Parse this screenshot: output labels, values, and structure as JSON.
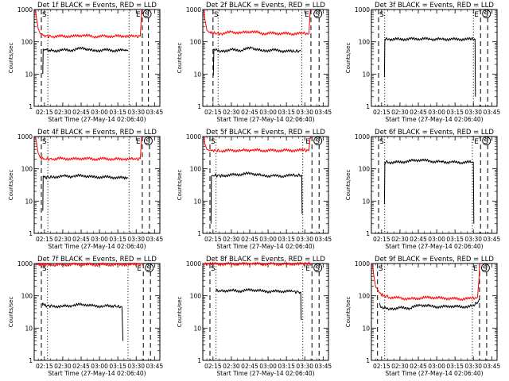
{
  "chart_data": {
    "type": "line",
    "yscale": "log",
    "ylabel": "Counts/sec",
    "xlabel": "Start Time (27-May-14 02:06:40)",
    "xlim": [
      7600,
      13760
    ],
    "ylim": [
      1,
      1000
    ],
    "xticks": [
      {
        "t": 8100,
        "label": "02:15"
      },
      {
        "t": 9000,
        "label": "02:30"
      },
      {
        "t": 9900,
        "label": "02:45"
      },
      {
        "t": 10800,
        "label": "03:00"
      },
      {
        "t": 11700,
        "label": "03:15"
      },
      {
        "t": 12600,
        "label": "03:30"
      },
      {
        "t": 13500,
        "label": "03:45"
      }
    ],
    "yticks": [
      {
        "v": 1,
        "label": "1"
      },
      {
        "v": 10,
        "label": "10"
      },
      {
        "v": 100,
        "label": "100"
      },
      {
        "v": 1000,
        "label": "1000"
      }
    ],
    "markers": [
      "S",
      "E",
      "S"
    ],
    "panels": [
      {
        "title": "Det 1f BLACK = Events, RED = LLD",
        "lines": {
          "dash1": 7950,
          "dot1": 8270,
          "dot2": 12250,
          "dashE": 12900,
          "dashS": 13200
        },
        "series": [
          {
            "color": "#ff0000",
            "x": [
              7650,
              7700,
              7800,
              7900,
              8100,
              8500,
              9000,
              9500,
              10000,
              10500,
              11000,
              11500,
              12000,
              12500,
              12800,
              12870
            ],
            "y": [
              1000,
              600,
              250,
              180,
              155,
              145,
              150,
              148,
              160,
              145,
              148,
              150,
              150,
              148,
              150,
              1000
            ]
          },
          {
            "color": "#000000",
            "x": [
              8020,
              8040,
              8090,
              8150,
              8500,
              9000,
              9500,
              10000,
              10500,
              11000,
              11500,
              12000,
              12200
            ],
            "y": [
              10,
              60,
              55,
              58,
              52,
              56,
              55,
              65,
              52,
              56,
              54,
              54,
              55
            ]
          }
        ]
      },
      {
        "title": "Det 2f BLACK = Events, RED = LLD",
        "lines": {
          "dash1": 8100,
          "dot1": 8350,
          "dot2": 12450,
          "dashE": 12900,
          "dashS": 13300
        },
        "series": [
          {
            "color": "#ff0000",
            "x": [
              7650,
              7700,
              7800,
              7900,
              8100,
              8500,
              9000,
              9500,
              10000,
              10500,
              11000,
              11500,
              12000,
              12500,
              12800,
              12870
            ],
            "y": [
              1000,
              500,
              230,
              200,
              185,
              180,
              200,
              190,
              210,
              180,
              185,
              180,
              178,
              180,
              180,
              1000
            ]
          },
          {
            "color": "#000000",
            "x": [
              8120,
              8140,
              8200,
              8500,
              9000,
              9500,
              10000,
              10500,
              11000,
              11500,
              12000,
              12400
            ],
            "y": [
              9,
              60,
              55,
              52,
              56,
              55,
              66,
              52,
              56,
              52,
              50,
              52
            ]
          }
        ]
      },
      {
        "title": "Det 3f BLACK = Events, RED = LLD",
        "lines": {
          "dash1": 7950,
          "dot1": 8250,
          "dot2": 12600,
          "dashE": 12950,
          "dashS": 13300
        },
        "series": [
          {
            "color": "#000000",
            "x": [
              8240,
              8260,
              8500,
              9000,
              9500,
              10000,
              10500,
              11000,
              11500,
              12000,
              12500,
              12680,
              12700
            ],
            "y": [
              8,
              120,
              120,
              120,
              122,
              125,
              120,
              122,
              120,
              120,
              120,
              120,
              2
            ]
          }
        ]
      },
      {
        "title": "Det 4f BLACK = Events, RED = LLD",
        "lines": {
          "dash1": 7950,
          "dot1": 8270,
          "dot2": 12250,
          "dashE": 12900,
          "dashS": 13250
        },
        "series": [
          {
            "color": "#ff0000",
            "x": [
              7650,
              7700,
              7800,
              7900,
              8100,
              8500,
              9000,
              9500,
              10000,
              10500,
              11000,
              11500,
              12000,
              12500,
              12800,
              12870
            ],
            "y": [
              1000,
              700,
              300,
              220,
              205,
              200,
              210,
              200,
              210,
              200,
              205,
              200,
              200,
              200,
              205,
              1000
            ]
          },
          {
            "color": "#000000",
            "x": [
              8020,
              8040,
              8100,
              8500,
              9000,
              9500,
              10000,
              10500,
              11000,
              11500,
              12000,
              12200
            ],
            "y": [
              5,
              60,
              55,
              55,
              60,
              58,
              62,
              55,
              56,
              54,
              52,
              52
            ]
          }
        ]
      },
      {
        "title": "Det 5f BLACK = Events, RED = LLD",
        "lines": {
          "dash1": 7950,
          "dot1": 8250,
          "dot2": 12500,
          "dashE": 12950,
          "dashS": 13300
        },
        "series": [
          {
            "color": "#ff0000",
            "x": [
              7650,
              7700,
              7800,
              7900,
              8100,
              8500,
              9000,
              9500,
              10000,
              10500,
              11000,
              11500,
              12000,
              12500,
              12800,
              12870
            ],
            "y": [
              1000,
              600,
              400,
              380,
              370,
              360,
              370,
              370,
              380,
              370,
              370,
              370,
              370,
              375,
              380,
              1000
            ]
          },
          {
            "color": "#000000",
            "x": [
              8000,
              8020,
              8100,
              8500,
              9000,
              9500,
              10000,
              10500,
              11000,
              11500,
              12000,
              12450,
              12470
            ],
            "y": [
              2,
              60,
              62,
              62,
              64,
              68,
              72,
              62,
              60,
              60,
              62,
              62,
              4
            ]
          }
        ]
      },
      {
        "title": "Det 6f BLACK = Events, RED = LLD",
        "lines": {
          "dash1": 7950,
          "dot1": 8250,
          "dot2": 12550,
          "dashE": 12950,
          "dashS": 13300
        },
        "series": [
          {
            "color": "#000000",
            "x": [
              8240,
              8260,
              8500,
              9000,
              9500,
              10000,
              10500,
              11000,
              11500,
              12000,
              12500,
              12600,
              12620
            ],
            "y": [
              8,
              160,
              158,
              160,
              175,
              190,
              170,
              165,
              160,
              158,
              160,
              160,
              2
            ]
          }
        ]
      },
      {
        "title": "Det 7f BLACK = Events, RED = LLD",
        "lines": {
          "dash1": 7950,
          "dot1": 8250,
          "dot2": 12200,
          "dashE": 12950,
          "dashS": 13300
        },
        "series": [
          {
            "color": "#ff0000",
            "x": [
              7650,
              7700,
              7800,
              8000,
              8500,
              9000,
              9500,
              10000,
              10500,
              11000,
              11500,
              12000,
              12500,
              12900,
              12950
            ],
            "y": [
              1000,
              950,
              930,
              920,
              900,
              920,
              930,
              950,
              920,
              930,
              920,
              930,
              930,
              950,
              1000
            ]
          },
          {
            "color": "#000000",
            "x": [
              8000,
              8020,
              8100,
              8500,
              9000,
              9500,
              10000,
              10500,
              11000,
              11500,
              11900,
              11930,
              11950
            ],
            "y": [
              50,
              60,
              50,
              48,
              47,
              50,
              55,
              48,
              48,
              48,
              45,
              10,
              4
            ]
          }
        ]
      },
      {
        "title": "Det 8f BLACK = Events, RED = LLD",
        "lines": {
          "dash1": 7950,
          "dot1": 8250,
          "dot2": 12500,
          "dashE": 12950,
          "dashS": 13300
        },
        "series": [
          {
            "color": "#ff0000",
            "x": [
              7650,
              7700,
              8000,
              8500,
              9000,
              9500,
              10000,
              10500,
              11000,
              11500,
              12000,
              12500,
              12900,
              12950
            ],
            "y": [
              1000,
              980,
              970,
              960,
              980,
              970,
              990,
              960,
              970,
              960,
              970,
              970,
              990,
              1000
            ]
          },
          {
            "color": "#000000",
            "x": [
              8240,
              8260,
              8500,
              9000,
              9500,
              10000,
              10500,
              11000,
              11500,
              12000,
              12400,
              12420,
              12440
            ],
            "y": [
              150,
              140,
              145,
              145,
              140,
              155,
              140,
              135,
              140,
              135,
              130,
              20,
              18
            ]
          }
        ]
      },
      {
        "title": "Det 9f BLACK = Events, RED = LLD",
        "lines": {
          "dash1": 7900,
          "dot1": 8250,
          "dot2": 12550,
          "dashE": 12900,
          "dashS": 13250
        },
        "series": [
          {
            "color": "#ff0000",
            "x": [
              7650,
              7700,
              7800,
              8000,
              8200,
              8500,
              9000,
              9500,
              10000,
              10500,
              11000,
              11500,
              12000,
              12500,
              12800,
              12870,
              12900
            ],
            "y": [
              1000,
              500,
              200,
              120,
              100,
              90,
              85,
              80,
              85,
              90,
              85,
              82,
              80,
              82,
              90,
              300,
              1000
            ]
          },
          {
            "color": "#000000",
            "x": [
              8000,
              8050,
              8200,
              8500,
              9000,
              9500,
              10000,
              10500,
              11000,
              11500,
              12000,
              12500,
              12800,
              12900
            ],
            "y": [
              60,
              45,
              42,
              40,
              42,
              42,
              52,
              48,
              45,
              48,
              45,
              48,
              60,
              80
            ]
          }
        ]
      }
    ]
  }
}
